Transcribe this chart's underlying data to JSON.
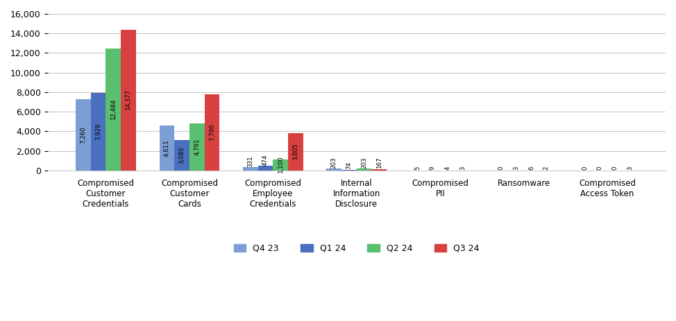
{
  "categories": [
    "Compromised\nCustomer\nCredentials",
    "Compromised\nCustomer\nCards",
    "Compromised\nEmployee\nCredentials",
    "Internal\nInformation\nDisclosure",
    "Compromised\nPII",
    "Ransomware",
    "Compromised\nAccess Token"
  ],
  "series": {
    "Q4 23": [
      7260,
      4611,
      331,
      203,
      5,
      0,
      0
    ],
    "Q1 24": [
      7929,
      3080,
      474,
      74,
      9,
      3,
      0
    ],
    "Q2 24": [
      12484,
      4791,
      1100,
      203,
      4,
      6,
      0
    ],
    "Q3 24": [
      14377,
      7790,
      3805,
      167,
      3,
      2,
      3
    ]
  },
  "colors": {
    "Q4 23": "#7b9fd4",
    "Q1 24": "#4a6fbe",
    "Q2 24": "#5abf6e",
    "Q3 24": "#d94040"
  },
  "ylim": [
    0,
    16000
  ],
  "yticks": [
    0,
    2000,
    4000,
    6000,
    8000,
    10000,
    12000,
    14000,
    16000
  ],
  "bar_width": 0.18,
  "label_fontsize": 6.2,
  "axis_label_fontsize": 8.5,
  "legend_fontsize": 9,
  "tick_fontsize": 9
}
